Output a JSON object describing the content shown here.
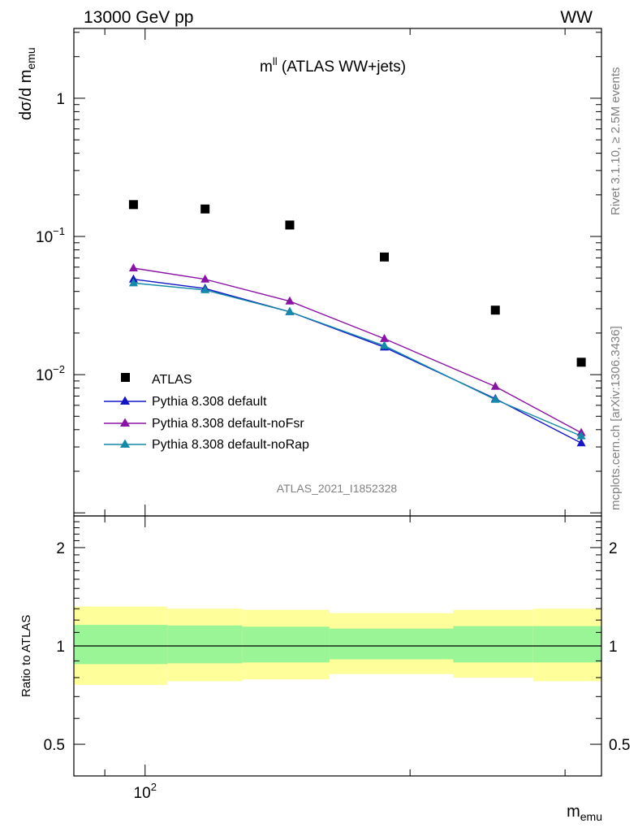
{
  "header": {
    "left": "13000 GeV pp",
    "right": "WW"
  },
  "side_labels": {
    "rivet": "Rivet 3.1.10, ≥ 2.5M events",
    "mcplots": "mcplots.cern.ch [arXiv:1306.3436]"
  },
  "chart_data": [
    {
      "type": "line",
      "title": "m",
      "title_sup": "ll",
      "title_rest": " (ATLAS WW+jets)",
      "ylabel": "dσ/d m",
      "ylabel_sub": "emu",
      "analysis_tag": "ATLAS_2021_I1852328",
      "x_scale": "log",
      "y_scale": "log",
      "xlim": [
        83,
        330
      ],
      "ylim": [
        0.00095,
        3.2
      ],
      "y_ticks": [
        {
          "value": 1,
          "label": "1"
        },
        {
          "value": 0.1,
          "label": "10",
          "sup": "−1"
        },
        {
          "value": 0.01,
          "label": "10",
          "sup": "−2"
        }
      ],
      "legend_position": "lower-left",
      "series": [
        {
          "name": "ATLAS",
          "marker": "square",
          "color": "#000000",
          "x": [
            97,
            117,
            146,
            187,
            250,
            313
          ],
          "y": [
            0.17,
            0.158,
            0.121,
            0.071,
            0.0293,
            0.0123
          ]
        },
        {
          "name": "Pythia 8.308 default",
          "marker": "triangle",
          "color": "#1515c8",
          "x": [
            97,
            117,
            146,
            187,
            250,
            313
          ],
          "y": [
            0.049,
            0.042,
            0.0285,
            0.0158,
            0.0067,
            0.0032
          ]
        },
        {
          "name": "Pythia 8.308 default-noFsr",
          "marker": "triangle",
          "color": "#8a13a6",
          "x": [
            97,
            117,
            146,
            187,
            250,
            313
          ],
          "y": [
            0.059,
            0.049,
            0.034,
            0.0182,
            0.0082,
            0.0038
          ]
        },
        {
          "name": "Pythia 8.308 default-noRap",
          "marker": "triangle",
          "color": "#1589a8",
          "x": [
            97,
            117,
            146,
            187,
            250,
            313
          ],
          "y": [
            0.046,
            0.041,
            0.0285,
            0.0162,
            0.0066,
            0.0036
          ]
        }
      ]
    },
    {
      "type": "area",
      "ylabel": "Ratio to ATLAS",
      "xlabel": "m",
      "xlabel_sub": "emu",
      "x_scale": "log",
      "y_scale": "log",
      "xlim": [
        83,
        330
      ],
      "ylim": [
        0.4,
        2.5
      ],
      "x_ticks": [
        {
          "value": 100,
          "label": "10",
          "sup": "2"
        }
      ],
      "y_ticks": [
        {
          "value": 2,
          "label": "2"
        },
        {
          "value": 1,
          "label": "1"
        },
        {
          "value": 0.5,
          "label": "0.5"
        }
      ],
      "reference_line": 1,
      "bins": [
        {
          "x0": 83,
          "x1": 106,
          "stat_lo": 0.88,
          "stat_hi": 1.16,
          "tot_lo": 0.76,
          "tot_hi": 1.32
        },
        {
          "x0": 106,
          "x1": 129,
          "stat_lo": 0.885,
          "stat_hi": 1.155,
          "tot_lo": 0.78,
          "tot_hi": 1.3
        },
        {
          "x0": 129,
          "x1": 162,
          "stat_lo": 0.89,
          "stat_hi": 1.145,
          "tot_lo": 0.79,
          "tot_hi": 1.29
        },
        {
          "x0": 162,
          "x1": 224,
          "stat_lo": 0.91,
          "stat_hi": 1.13,
          "tot_lo": 0.82,
          "tot_hi": 1.26
        },
        {
          "x0": 224,
          "x1": 276,
          "stat_lo": 0.89,
          "stat_hi": 1.15,
          "tot_lo": 0.8,
          "tot_hi": 1.29
        },
        {
          "x0": 276,
          "x1": 330,
          "stat_lo": 0.89,
          "stat_hi": 1.15,
          "tot_lo": 0.78,
          "tot_hi": 1.3
        }
      ],
      "band_colors": {
        "stat": "#99f595",
        "total": "#fefe9a"
      }
    }
  ]
}
